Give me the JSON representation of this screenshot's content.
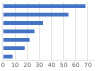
{
  "chart_data": {
    "type": "bar",
    "orientation": "horizontal",
    "categories": [
      null,
      null,
      null,
      null,
      null,
      null,
      null
    ],
    "values": [
      68,
      54,
      33,
      26,
      22,
      18,
      8
    ],
    "color": "#4472c4",
    "xlim": [
      0,
      75
    ],
    "xticks": [
      0,
      10,
      20,
      30,
      40,
      50,
      60,
      70
    ],
    "grid": true,
    "tick_labels": "x"
  }
}
